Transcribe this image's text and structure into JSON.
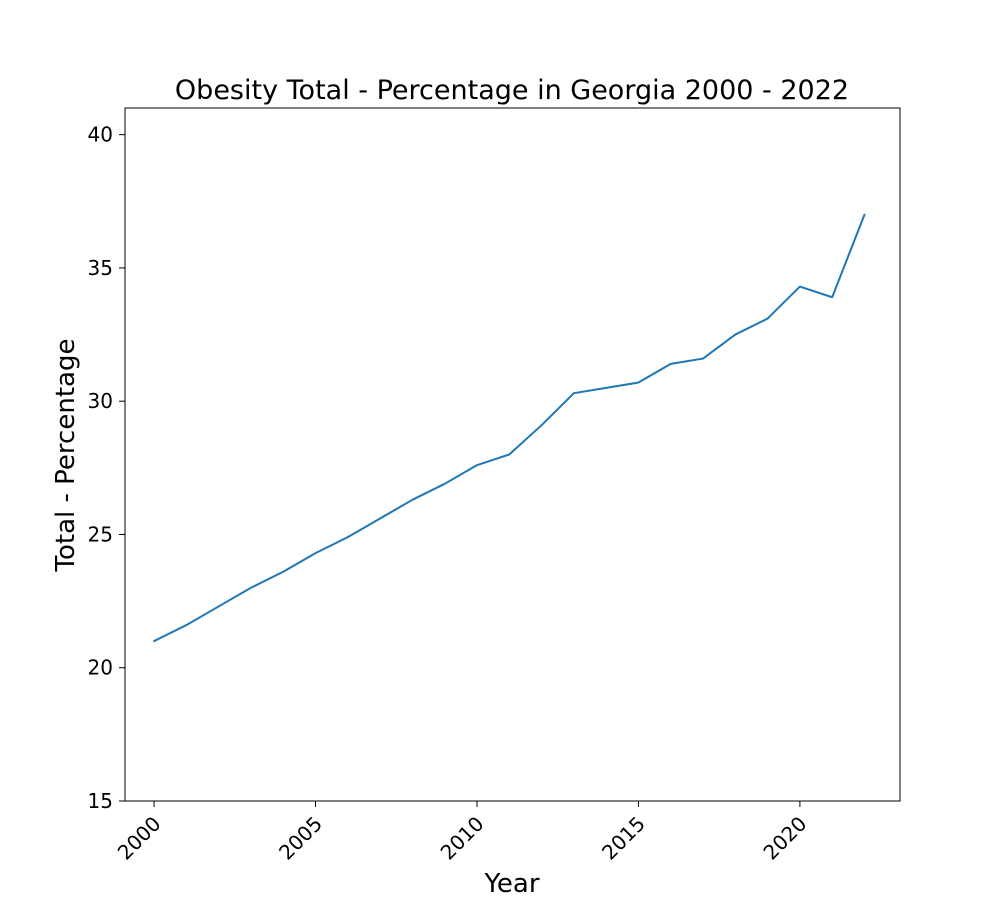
{
  "chart_data": {
    "type": "line",
    "title": "Obesity Total - Percentage in Georgia 2000 - 2022",
    "xlabel": "Year",
    "ylabel": "Total - Percentage",
    "x": [
      2000,
      2001,
      2002,
      2003,
      2004,
      2005,
      2006,
      2007,
      2008,
      2009,
      2010,
      2011,
      2012,
      2013,
      2014,
      2015,
      2016,
      2017,
      2018,
      2019,
      2020,
      2021,
      2022
    ],
    "series": [
      {
        "values": [
          21.0,
          21.6,
          22.3,
          23.0,
          23.6,
          24.3,
          24.9,
          25.6,
          26.3,
          26.9,
          27.6,
          28.0,
          29.1,
          30.3,
          30.5,
          30.7,
          31.4,
          31.6,
          32.5,
          33.1,
          34.3,
          33.9,
          37.0
        ],
        "color": "#1f77b4"
      }
    ],
    "xlim": [
      1999.1,
      2023.1
    ],
    "ylim": [
      15,
      41
    ],
    "xticks": [
      2000,
      2005,
      2010,
      2015,
      2020
    ],
    "yticks": [
      15,
      20,
      25,
      30,
      35,
      40
    ],
    "grid": false,
    "legend": "none"
  }
}
